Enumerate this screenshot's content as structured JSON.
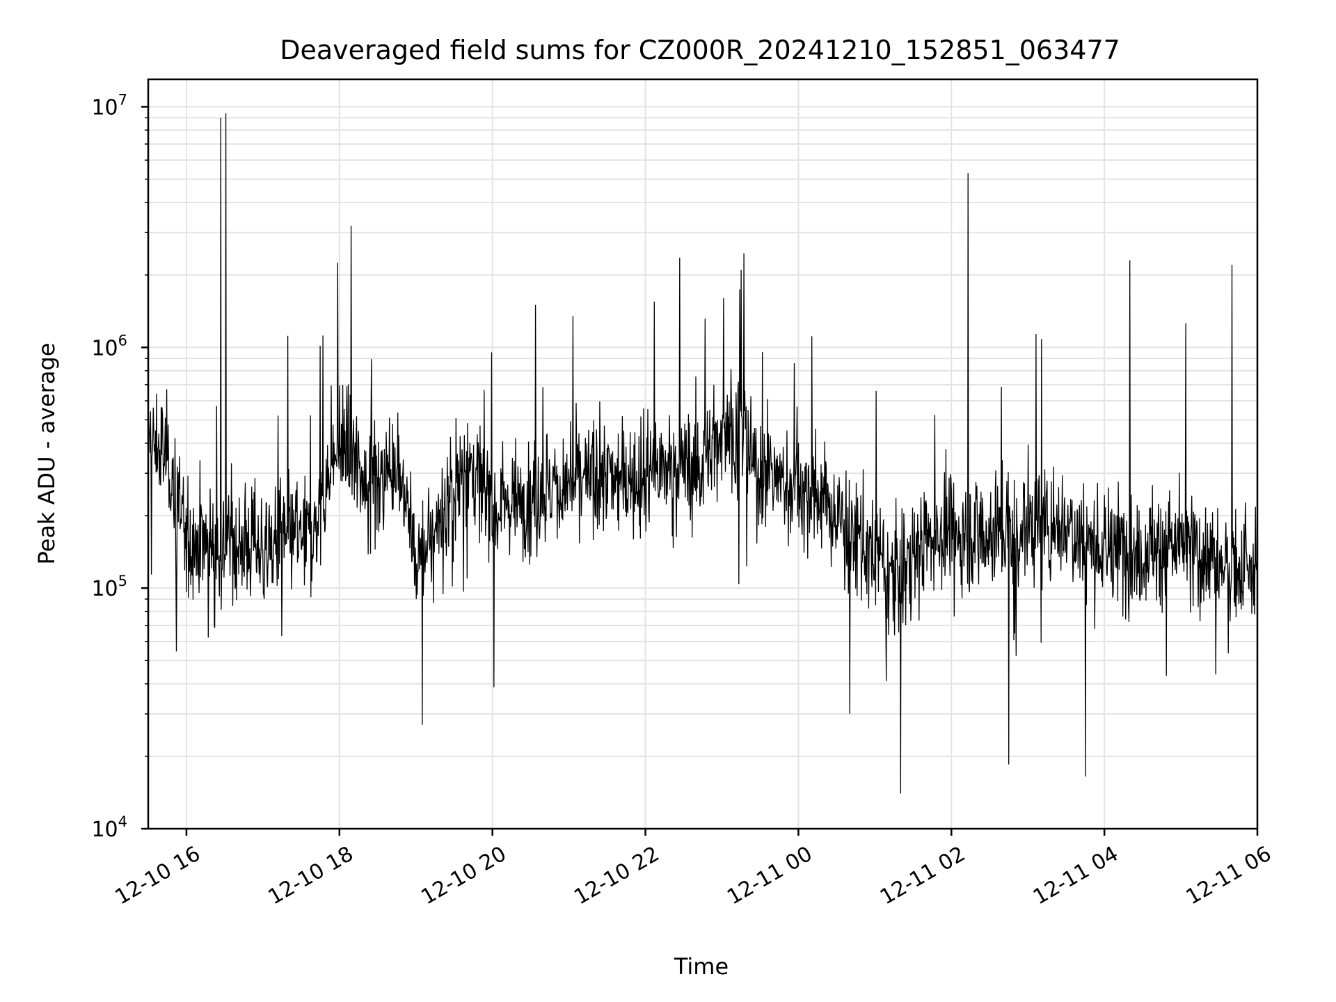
{
  "chart_data": {
    "type": "line",
    "title": "Deaveraged field sums for CZ000R_20241210_152851_063477",
    "xlabel": "Time",
    "ylabel": "Peak ADU - average",
    "xlim": [
      "2024-12-10 15:30",
      "2024-12-11 06:00"
    ],
    "ylim": [
      10000,
      13000000
    ],
    "yscale": "log",
    "grid": true,
    "x_tick_labels": [
      "12-10 16",
      "12-10 18",
      "12-10 20",
      "12-10 22",
      "12-11 00",
      "12-11 02",
      "12-11 04",
      "12-11 06"
    ],
    "y_tick_labels": [
      {
        "base": "10",
        "exp": "4"
      },
      {
        "base": "10",
        "exp": "5"
      },
      {
        "base": "10",
        "exp": "6"
      },
      {
        "base": "10",
        "exp": "7"
      }
    ],
    "line_color": "#000000",
    "baseline": [
      {
        "t": "2024-12-10 15:30",
        "v": 400000
      },
      {
        "t": "2024-12-10 15:45",
        "v": 350000
      },
      {
        "t": "2024-12-10 16:00",
        "v": 160000
      },
      {
        "t": "2024-12-10 17:00",
        "v": 150000
      },
      {
        "t": "2024-12-10 17:40",
        "v": 170000
      },
      {
        "t": "2024-12-10 18:00",
        "v": 400000
      },
      {
        "t": "2024-12-10 18:30",
        "v": 250000
      },
      {
        "t": "2024-12-10 18:45",
        "v": 380000
      },
      {
        "t": "2024-12-10 19:00",
        "v": 120000
      },
      {
        "t": "2024-12-10 19:20",
        "v": 200000
      },
      {
        "t": "2024-12-10 19:40",
        "v": 330000
      },
      {
        "t": "2024-12-10 20:00",
        "v": 220000
      },
      {
        "t": "2024-12-10 21:00",
        "v": 270000
      },
      {
        "t": "2024-12-10 22:00",
        "v": 300000
      },
      {
        "t": "2024-12-10 22:45",
        "v": 330000
      },
      {
        "t": "2024-12-10 23:05",
        "v": 500000
      },
      {
        "t": "2024-12-10 23:30",
        "v": 300000
      },
      {
        "t": "2024-12-11 00:15",
        "v": 240000
      },
      {
        "t": "2024-12-11 00:45",
        "v": 160000
      },
      {
        "t": "2024-12-11 01:15",
        "v": 110000
      },
      {
        "t": "2024-12-11 01:45",
        "v": 170000
      },
      {
        "t": "2024-12-11 02:30",
        "v": 170000
      },
      {
        "t": "2024-12-11 03:30",
        "v": 190000
      },
      {
        "t": "2024-12-11 04:00",
        "v": 140000
      },
      {
        "t": "2024-12-11 05:00",
        "v": 150000
      },
      {
        "t": "2024-12-11 06:00",
        "v": 110000
      }
    ],
    "notable_peaks": [
      {
        "t": "2024-12-10 16:27",
        "v": 9000000
      },
      {
        "t": "2024-12-10 16:31",
        "v": 9400000
      },
      {
        "t": "2024-12-10 18:09",
        "v": 3200000
      },
      {
        "t": "2024-12-10 23:15",
        "v": 2100000
      },
      {
        "t": "2024-12-11 02:13",
        "v": 5300000
      },
      {
        "t": "2024-12-11 04:20",
        "v": 2300000
      },
      {
        "t": "2024-12-11 05:40",
        "v": 2200000
      }
    ],
    "notable_minima": [
      {
        "t": "2024-12-10 19:05",
        "v": 27000
      },
      {
        "t": "2024-12-11 01:20",
        "v": 14000
      },
      {
        "t": "2024-12-11 03:45",
        "v": 16500
      },
      {
        "t": "2024-12-11 02:45",
        "v": 18500
      }
    ]
  }
}
